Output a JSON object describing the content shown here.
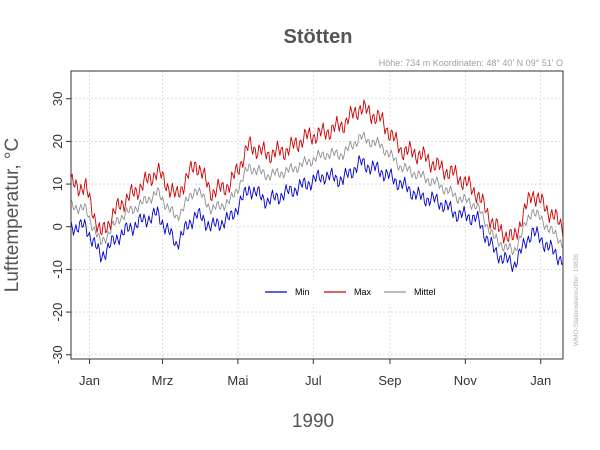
{
  "chart_data": {
    "type": "line",
    "title": "Stötten",
    "subtitle": "Höhe: 734 m   Koordinaten: 48° 40' N  09° 51' O",
    "xlabel": "1990",
    "ylabel": "Lufttemperatur, °C",
    "side_note": "WMO-Stationskennziffer: 10836",
    "ylim": [
      -31,
      36.5
    ],
    "yticks": [
      -30,
      -20,
      -10,
      0,
      10,
      20,
      30
    ],
    "ytick_labels": [
      "-30",
      "-20",
      "-10",
      "0",
      "10",
      "20",
      "30"
    ],
    "xlim": [
      "1989-12-17",
      "1991-01-19"
    ],
    "xticks": [
      {
        "date": "1990-01-01",
        "label": "Jan"
      },
      {
        "date": "1990-03-01",
        "label": "Mrz"
      },
      {
        "date": "1990-05-01",
        "label": "Mai"
      },
      {
        "date": "1990-07-01",
        "label": "Jul"
      },
      {
        "date": "1990-09-01",
        "label": "Sep"
      },
      {
        "date": "1990-11-01",
        "label": "Nov"
      },
      {
        "date": "1991-01-01",
        "label": "Jan"
      }
    ],
    "grid": true,
    "legend_position": "center",
    "colors": {
      "min": "#0000cc",
      "max": "#cc0000",
      "mittel": "#909090"
    },
    "series": [
      {
        "name": "Min",
        "key": "min",
        "x": [
          "1989-12-17",
          "1989-12-29",
          "1990-01-10",
          "1990-01-25",
          "1990-02-10",
          "1990-02-25",
          "1990-03-12",
          "1990-03-28",
          "1990-04-10",
          "1990-04-25",
          "1990-05-10",
          "1990-05-25",
          "1990-06-10",
          "1990-06-25",
          "1990-07-10",
          "1990-07-25",
          "1990-08-08",
          "1990-08-25",
          "1990-09-10",
          "1990-09-25",
          "1990-10-10",
          "1990-10-25",
          "1990-11-10",
          "1990-11-25",
          "1990-12-10",
          "1990-12-25",
          "1991-01-19"
        ],
        "y": [
          0,
          0,
          -7,
          -2,
          1,
          3,
          -4,
          3,
          0,
          2,
          9,
          6,
          8,
          10,
          12,
          11,
          15,
          13,
          10,
          7,
          6,
          3,
          2,
          -6,
          -9,
          -1,
          -8
        ]
      },
      {
        "name": "Max",
        "key": "max",
        "x": [
          "1989-12-17",
          "1989-12-29",
          "1990-01-10",
          "1990-01-25",
          "1990-02-10",
          "1990-02-25",
          "1990-03-12",
          "1990-03-28",
          "1990-04-10",
          "1990-04-25",
          "1990-05-10",
          "1990-05-25",
          "1990-06-10",
          "1990-06-25",
          "1990-07-10",
          "1990-07-25",
          "1990-08-08",
          "1990-08-25",
          "1990-09-10",
          "1990-09-25",
          "1990-10-10",
          "1990-10-25",
          "1990-11-10",
          "1990-11-25",
          "1990-12-10",
          "1990-12-25",
          "1991-01-19"
        ],
        "y": [
          10,
          9,
          -2,
          5,
          9,
          13,
          7,
          15,
          8,
          10,
          19,
          17,
          18,
          21,
          22,
          24,
          28,
          25,
          18,
          17,
          14,
          12,
          8,
          0,
          -3,
          8,
          0
        ]
      },
      {
        "name": "Mittel",
        "key": "mittel",
        "x": [
          "1989-12-17",
          "1989-12-29",
          "1990-01-10",
          "1990-01-25",
          "1990-02-10",
          "1990-02-25",
          "1990-03-12",
          "1990-03-28",
          "1990-04-10",
          "1990-04-25",
          "1990-05-10",
          "1990-05-25",
          "1990-06-10",
          "1990-06-25",
          "1990-07-10",
          "1990-07-25",
          "1990-08-08",
          "1990-08-25",
          "1990-09-10",
          "1990-09-25",
          "1990-10-10",
          "1990-10-25",
          "1990-11-10",
          "1990-11-25",
          "1990-12-10",
          "1990-12-25",
          "1991-01-19"
        ],
        "y": [
          5,
          4,
          -4,
          2,
          5,
          8,
          2,
          9,
          4,
          6,
          14,
          12,
          13,
          15,
          17,
          17,
          21,
          19,
          14,
          12,
          10,
          7,
          5,
          -3,
          -6,
          4,
          -4
        ]
      }
    ]
  }
}
